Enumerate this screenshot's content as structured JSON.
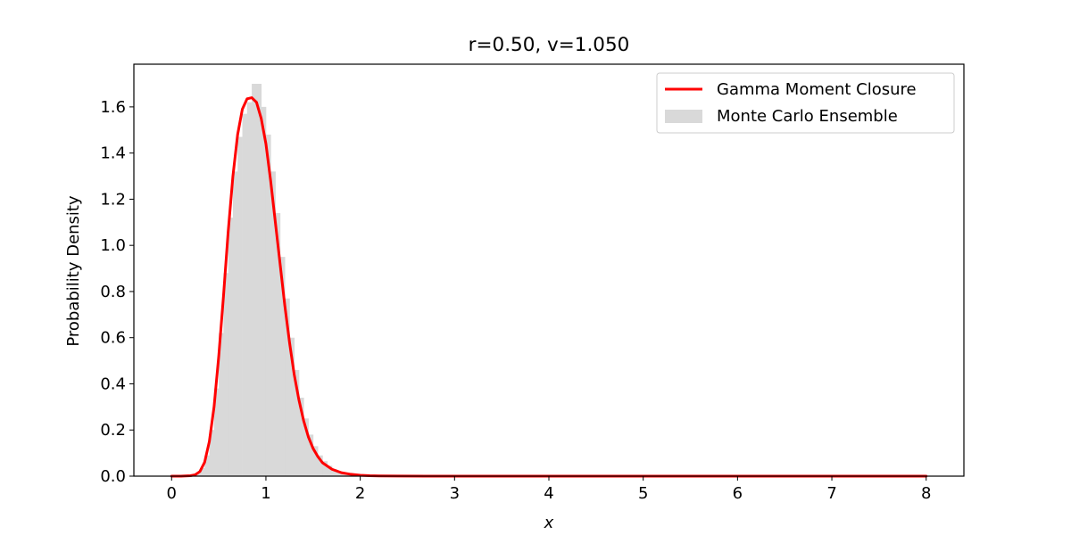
{
  "chart_data": {
    "type": "line",
    "title": "r=0.50, v=1.050",
    "xlabel": "x",
    "ylabel": "Probability Density",
    "xlim": [
      -0.4,
      8.4
    ],
    "ylim": [
      0,
      1.785
    ],
    "x_ticks": [
      0,
      1,
      2,
      3,
      4,
      5,
      6,
      7,
      8
    ],
    "y_ticks": [
      0.0,
      0.2,
      0.4,
      0.6,
      0.8,
      1.0,
      1.2,
      1.4,
      1.6
    ],
    "y_tick_labels": [
      "0.0",
      "0.2",
      "0.4",
      "0.6",
      "0.8",
      "1.0",
      "1.2",
      "1.4",
      "1.6"
    ],
    "legend": {
      "placement": "top-right",
      "entries": [
        "Gamma Moment Closure",
        "Monte Carlo Ensemble"
      ]
    },
    "series": [
      {
        "name": "Gamma Moment Closure",
        "kind": "line",
        "color": "#ff0000",
        "x": [
          0,
          0.1,
          0.2,
          0.25,
          0.3,
          0.35,
          0.4,
          0.45,
          0.5,
          0.55,
          0.6,
          0.65,
          0.7,
          0.75,
          0.8,
          0.85,
          0.9,
          0.95,
          1.0,
          1.05,
          1.1,
          1.15,
          1.2,
          1.25,
          1.3,
          1.35,
          1.4,
          1.45,
          1.5,
          1.55,
          1.6,
          1.7,
          1.8,
          1.9,
          2.0,
          2.1,
          2.2,
          2.4,
          2.7,
          3.0,
          4.0,
          5.0,
          6.0,
          7.0,
          8.0
        ],
        "y": [
          0,
          0.0,
          0.002,
          0.006,
          0.02,
          0.06,
          0.15,
          0.3,
          0.52,
          0.78,
          1.06,
          1.3,
          1.48,
          1.59,
          1.635,
          1.64,
          1.62,
          1.55,
          1.44,
          1.28,
          1.1,
          0.92,
          0.74,
          0.58,
          0.44,
          0.33,
          0.24,
          0.17,
          0.12,
          0.085,
          0.058,
          0.03,
          0.015,
          0.008,
          0.004,
          0.002,
          0.001,
          0.0003,
          0.0,
          0.0,
          0.0,
          0.0,
          0.0,
          0.0,
          0.0
        ]
      },
      {
        "name": "Monte Carlo Ensemble",
        "kind": "histogram",
        "color": "#d9d9d9",
        "bin_width": 0.05,
        "bin_left_edges": [
          0.2,
          0.25,
          0.3,
          0.35,
          0.4,
          0.45,
          0.5,
          0.55,
          0.6,
          0.65,
          0.7,
          0.75,
          0.8,
          0.85,
          0.9,
          0.95,
          1.0,
          1.05,
          1.1,
          1.15,
          1.2,
          1.25,
          1.3,
          1.35,
          1.4,
          1.45,
          1.5,
          1.55,
          1.6,
          1.65,
          1.7,
          1.75,
          1.8,
          1.85,
          1.9,
          1.95,
          2.0
        ],
        "values": [
          0.004,
          0.012,
          0.035,
          0.09,
          0.2,
          0.38,
          0.62,
          0.88,
          1.12,
          1.32,
          1.47,
          1.57,
          1.62,
          1.7,
          1.7,
          1.6,
          1.48,
          1.32,
          1.14,
          0.95,
          0.77,
          0.6,
          0.46,
          0.34,
          0.25,
          0.18,
          0.13,
          0.09,
          0.065,
          0.045,
          0.03,
          0.02,
          0.013,
          0.009,
          0.006,
          0.004,
          0.002
        ]
      }
    ]
  }
}
